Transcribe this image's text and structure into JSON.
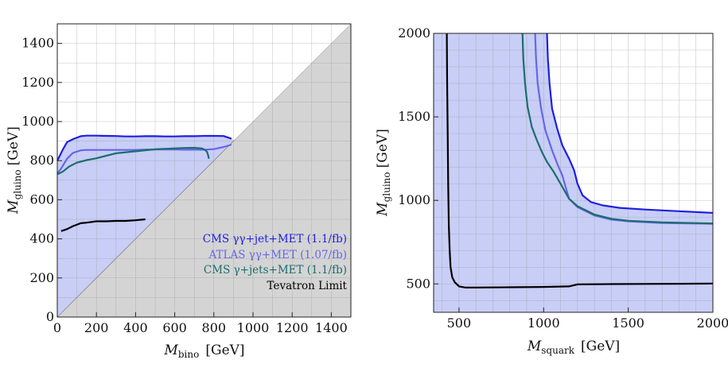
{
  "chart_data": [
    {
      "type": "line",
      "title": "",
      "xlabel": "M_bino [GeV]",
      "xlabel_main": "M",
      "xlabel_sub": "bino",
      "xlabel_unit": "[GeV]",
      "ylabel": "M_gluino [GeV]",
      "ylabel_main": "M",
      "ylabel_sub": "gluino",
      "ylabel_unit": "[GeV]",
      "xlim": [
        0,
        1500
      ],
      "ylim": [
        0,
        1500
      ],
      "grid": true,
      "xticks": [
        0,
        200,
        400,
        600,
        800,
        1000,
        1200,
        1400
      ],
      "yticks": [
        0,
        200,
        400,
        600,
        800,
        1000,
        1200,
        1400
      ],
      "excluded_region_color": "#d4d4d4",
      "allowed_fill_color": "#c8cef6",
      "legend_position": "bottom-right",
      "series": [
        {
          "name": "CMS γγ+jet+MET (1.1/fb)",
          "color": "#1f1fe0",
          "x": [
            0,
            10,
            30,
            50,
            80,
            120,
            150,
            200,
            250,
            300,
            350,
            400,
            450,
            500,
            550,
            600,
            650,
            700,
            750,
            800,
            850,
            890
          ],
          "y": [
            800,
            820,
            860,
            895,
            910,
            925,
            928,
            928,
            927,
            926,
            924,
            924,
            925,
            925,
            924,
            924,
            925,
            925,
            927,
            927,
            926,
            912
          ]
        },
        {
          "name": "ATLAS γγ+MET (1.07/fb)",
          "color": "#6666e8",
          "x": [
            0,
            20,
            50,
            80,
            120,
            150,
            200,
            250,
            300,
            350,
            400,
            450,
            500,
            550,
            600,
            650,
            700,
            750,
            800,
            850,
            890
          ],
          "y": [
            735,
            760,
            810,
            840,
            853,
            855,
            855,
            855,
            855,
            855,
            855,
            857,
            857,
            857,
            857,
            856,
            856,
            856,
            859,
            870,
            882
          ]
        },
        {
          "name": "CMS γ+jets+MET (1.1/fb)",
          "color": "#1c6d6d",
          "x": [
            0,
            30,
            60,
            100,
            150,
            200,
            250,
            300,
            400,
            500,
            600,
            650,
            700,
            740,
            755,
            765,
            770,
            775
          ],
          "y": [
            730,
            745,
            770,
            790,
            803,
            812,
            825,
            838,
            848,
            858,
            863,
            865,
            866,
            862,
            855,
            845,
            830,
            810
          ]
        },
        {
          "name": "Tevatron Limit",
          "color": "#000000",
          "x": [
            20,
            50,
            80,
            120,
            150,
            200,
            250,
            300,
            350,
            400,
            450
          ],
          "y": [
            440,
            450,
            465,
            480,
            483,
            490,
            490,
            492,
            492,
            495,
            500
          ]
        }
      ]
    },
    {
      "type": "line",
      "title": "",
      "xlabel": "M_squark [GeV]",
      "xlabel_main": "M",
      "xlabel_sub": "squark",
      "xlabel_unit": "[GeV]",
      "ylabel": "M_gluino [GeV]",
      "ylabel_main": "M",
      "ylabel_sub": "gluino",
      "ylabel_unit": "[GeV]",
      "xlim": [
        350,
        2000
      ],
      "ylim": [
        330,
        2000
      ],
      "grid": true,
      "xticks": [
        500,
        1000,
        1500,
        2000
      ],
      "yticks": [
        500,
        1000,
        1500,
        2000
      ],
      "allowed_fill_color": "#c8cef6",
      "series": [
        {
          "name": "CMS γγ+jet+MET (1.1/fb)",
          "color": "#1f1fe0",
          "x": [
            1020,
            1025,
            1035,
            1050,
            1080,
            1110,
            1150,
            1180,
            1200,
            1230,
            1280,
            1350,
            1450,
            1600,
            1800,
            2000
          ],
          "y": [
            2000,
            1850,
            1700,
            1550,
            1430,
            1330,
            1250,
            1180,
            1100,
            1030,
            990,
            970,
            955,
            945,
            935,
            925
          ]
        },
        {
          "name": "ATLAS γγ+MET (1.07/fb)",
          "color": "#6666e8",
          "x": [
            950,
            955,
            965,
            985,
            1010,
            1050,
            1080,
            1110,
            1150,
            1200,
            1300,
            1400,
            1500,
            1700,
            2000
          ],
          "y": [
            2000,
            1850,
            1700,
            1550,
            1420,
            1300,
            1220,
            1150,
            1010,
            960,
            910,
            885,
            875,
            865,
            860
          ]
        },
        {
          "name": "CMS γ+jets+MET (1.1/fb)",
          "color": "#1c6d6d",
          "x": [
            875,
            880,
            890,
            905,
            930,
            960,
            990,
            1020,
            1060,
            1100,
            1150,
            1200,
            1300,
            1400,
            1500,
            1700,
            2000
          ],
          "y": [
            2000,
            1850,
            1700,
            1560,
            1440,
            1360,
            1290,
            1230,
            1170,
            1100,
            1010,
            965,
            915,
            890,
            878,
            868,
            862
          ]
        },
        {
          "name": "Tevatron Limit",
          "color": "#000000",
          "x": [
            428,
            430,
            433,
            436,
            440,
            445,
            450,
            460,
            475,
            500,
            540,
            600,
            800,
            1000,
            1150,
            1200,
            1400,
            1600,
            1800,
            2000
          ],
          "y": [
            2000,
            1700,
            1400,
            1100,
            850,
            700,
            600,
            540,
            510,
            485,
            478,
            478,
            480,
            482,
            485,
            497,
            499,
            500,
            501,
            502
          ]
        }
      ]
    }
  ]
}
